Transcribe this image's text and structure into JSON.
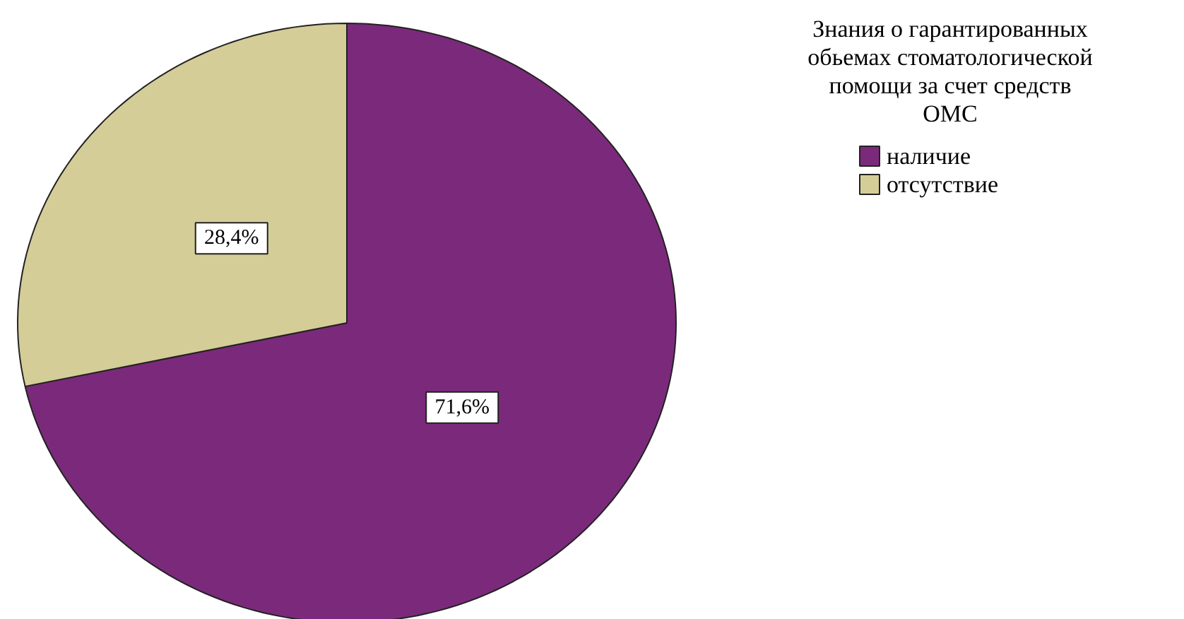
{
  "chart_data": {
    "type": "pie",
    "legend_title": "Знания о гарантированных обьемах стоматологической помощи за счет средств ОМС",
    "categories": [
      "наличие",
      "отсутствие"
    ],
    "values": [
      71.6,
      28.4
    ],
    "colors": [
      "#7b2a7b",
      "#d4cd98"
    ],
    "value_labels": [
      "71,6%",
      "28,4%"
    ],
    "legend": "top right"
  }
}
